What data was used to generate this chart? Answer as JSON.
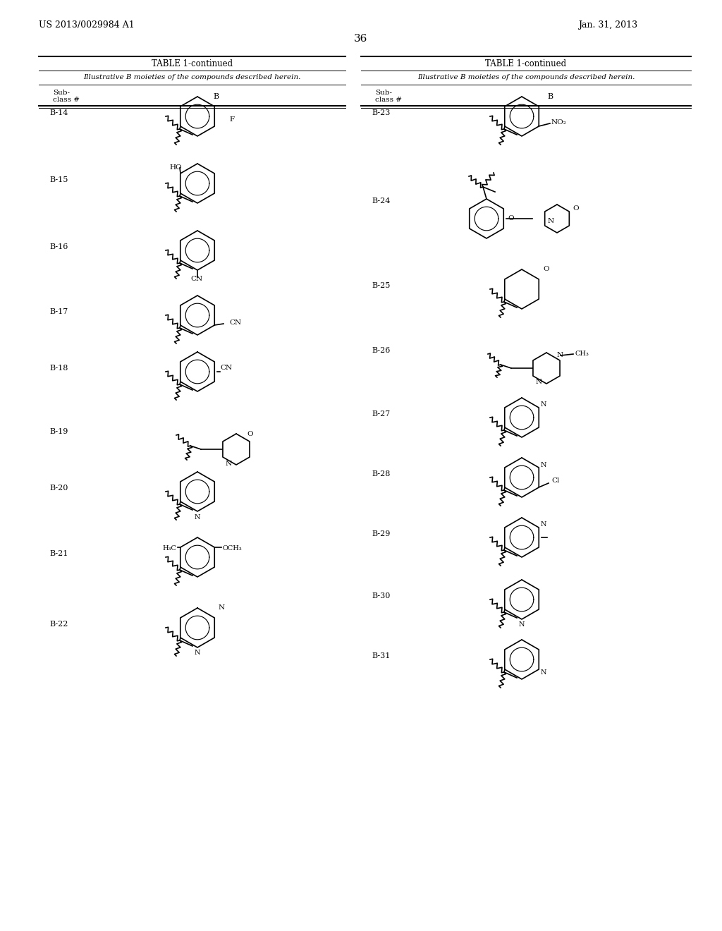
{
  "page_header_left": "US 2013/0029984 A1",
  "page_header_right": "Jan. 31, 2013",
  "page_number": "36",
  "table_title": "TABLE 1-continued",
  "table_subtitle": "Illustrative B moieties of the compounds described herein.",
  "col1_header": "Sub-\nclass #",
  "col2_header": "B",
  "background_color": "#ffffff",
  "text_color": "#000000",
  "left_entries": [
    "B-14",
    "B-15",
    "B-16",
    "B-17",
    "B-18",
    "B-19",
    "B-20",
    "B-21",
    "B-22"
  ],
  "right_entries": [
    "B-23",
    "B-24",
    "B-25",
    "B-26",
    "B-27",
    "B-28",
    "B-29",
    "B-30",
    "B-31"
  ]
}
